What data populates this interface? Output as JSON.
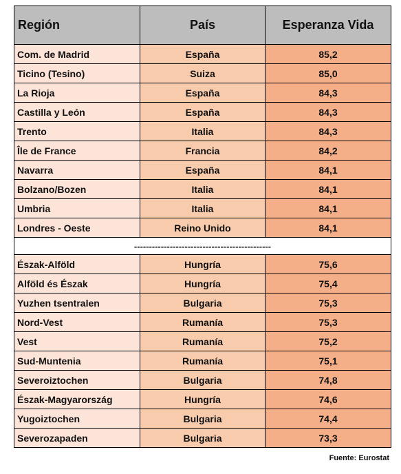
{
  "table": {
    "headers": {
      "region": "Región",
      "pais": "País",
      "vida": "Esperanza Vida"
    },
    "top_rows": [
      {
        "region": "Com. de Madrid",
        "pais": "España",
        "vida": "85,2"
      },
      {
        "region": "Ticino (Tesino)",
        "pais": "Suiza",
        "vida": "85,0"
      },
      {
        "region": "La Rioja",
        "pais": "España",
        "vida": "84,3"
      },
      {
        "region": "Castilla y León",
        "pais": "España",
        "vida": "84,3"
      },
      {
        "region": "Trento",
        "pais": "Italia",
        "vida": "84,3"
      },
      {
        "region": "Île de France",
        "pais": "Francia",
        "vida": "84,2"
      },
      {
        "region": "Navarra",
        "pais": "España",
        "vida": "84,1"
      },
      {
        "region": "Bolzano/Bozen",
        "pais": "Italia",
        "vida": "84,1"
      },
      {
        "region": "Umbria",
        "pais": "Italia",
        "vida": "84,1"
      },
      {
        "region": "Londres - Oeste",
        "pais": "Reino Unido",
        "vida": "84,1"
      }
    ],
    "separator": "----------------------------------------------",
    "bottom_rows": [
      {
        "region": "Észak-Alföld",
        "pais": "Hungría",
        "vida": "75,6"
      },
      {
        "region": "Alföld és Észak",
        "pais": "Hungría",
        "vida": "75,4"
      },
      {
        "region": "Yuzhen tsentralen",
        "pais": "Bulgaria",
        "vida": "75,3"
      },
      {
        "region": "Nord-Vest",
        "pais": "Rumanía",
        "vida": "75,3"
      },
      {
        "region": "Vest",
        "pais": "Rumanía",
        "vida": "75,2"
      },
      {
        "region": "Sud-Muntenia",
        "pais": "Rumanía",
        "vida": "75,1"
      },
      {
        "region": "Severoiztochen",
        "pais": "Bulgaria",
        "vida": "74,8"
      },
      {
        "region": "Észak-Magyarország",
        "pais": "Hungría",
        "vida": "74,6"
      },
      {
        "region": "Yugoiztochen",
        "pais": "Bulgaria",
        "vida": "74,4"
      },
      {
        "region": "Severozapaden",
        "pais": "Bulgaria",
        "vida": "73,3"
      }
    ]
  },
  "source": "Fuente: Eurostat",
  "colors": {
    "header_bg": "#bdbdbd",
    "region_bg": "#fde4d8",
    "pais_bg": "#f8cbad",
    "vida_bg": "#f4ae88"
  }
}
